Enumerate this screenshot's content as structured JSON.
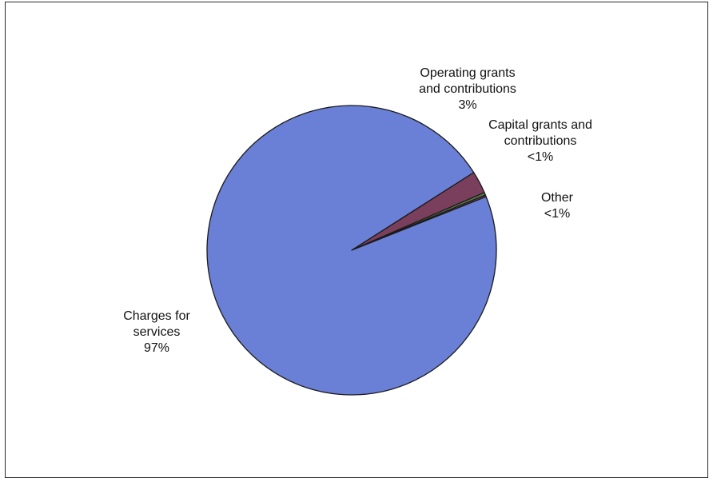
{
  "chart_data": {
    "type": "pie",
    "title": "",
    "slices": [
      {
        "label_lines": [
          "Charges for",
          "services",
          "97%"
        ],
        "value": 97.0,
        "color": "#6a7fd6"
      },
      {
        "label_lines": [
          "Operating grants",
          "and contributions",
          "3%"
        ],
        "value": 2.5,
        "color": "#7a3f5c"
      },
      {
        "label_lines": [
          "Capital grants and",
          "contributions",
          "<1%"
        ],
        "value": 0.3,
        "color": "#5a7a4a"
      },
      {
        "label_lines": [
          "Other",
          "<1%"
        ],
        "value": 0.2,
        "color": "#7a3f5c"
      }
    ],
    "legend": "none",
    "stroke_color": "#1a1a1a"
  }
}
